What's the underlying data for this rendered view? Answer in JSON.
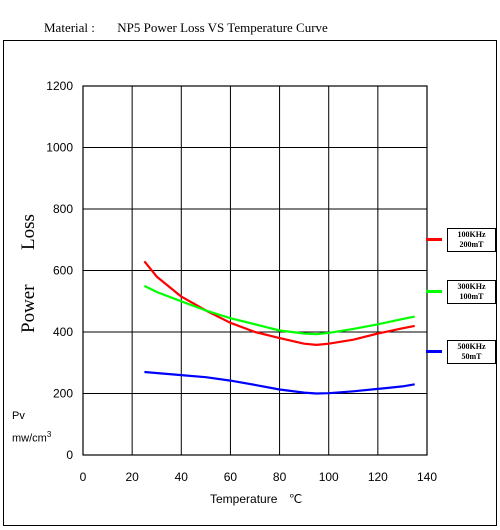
{
  "header": {
    "material_label": "Material :",
    "title": "NP5   Power Loss VS Temperature  Curve"
  },
  "chart_data": {
    "type": "line",
    "title": "Power Loss VS Temperature  Curve",
    "xlabel": "Temperature",
    "xunit": "℃",
    "ylabel_line1": "Power",
    "ylabel_line2": "Loss",
    "yunit_line1": "Pv",
    "yunit_line2": "mw/cm",
    "yunit_sup": "3",
    "xlim": [
      0,
      140
    ],
    "ylim": [
      0,
      1200
    ],
    "xticks": [
      0,
      20,
      40,
      60,
      80,
      100,
      120,
      140
    ],
    "yticks": [
      0,
      200,
      400,
      600,
      800,
      1000,
      1200
    ],
    "grid": true,
    "legend_position": "right",
    "series": [
      {
        "name_line1": "100KHz",
        "name_line2": "200mT",
        "color": "#ff0000",
        "x": [
          25,
          30,
          40,
          50,
          60,
          70,
          80,
          90,
          95,
          100,
          110,
          120,
          130,
          135
        ],
        "y": [
          630,
          580,
          515,
          470,
          430,
          400,
          380,
          362,
          358,
          362,
          375,
          395,
          412,
          420
        ]
      },
      {
        "name_line1": "300KHz",
        "name_line2": "100mT",
        "color": "#00ff00",
        "x": [
          25,
          30,
          40,
          50,
          60,
          70,
          80,
          90,
          95,
          100,
          110,
          120,
          130,
          135
        ],
        "y": [
          550,
          530,
          500,
          470,
          445,
          425,
          405,
          395,
          393,
          397,
          410,
          425,
          442,
          450
        ]
      },
      {
        "name_line1": "500KHz",
        "name_line2": "50mT",
        "color": "#0000ff",
        "x": [
          25,
          40,
          50,
          60,
          70,
          80,
          90,
          95,
          100,
          110,
          120,
          130,
          135
        ],
        "y": [
          270,
          260,
          253,
          242,
          228,
          213,
          203,
          200,
          201,
          207,
          215,
          223,
          230
        ]
      }
    ]
  }
}
